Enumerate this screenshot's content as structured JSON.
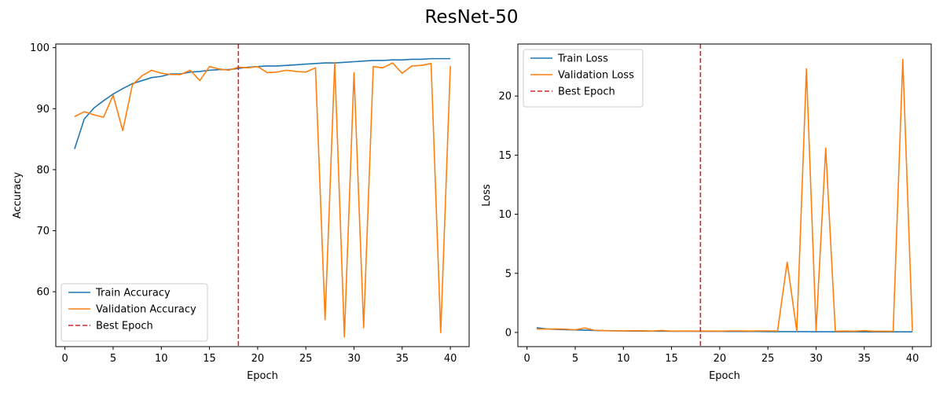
{
  "suptitle": "ResNet-50",
  "chart_data": [
    {
      "type": "line",
      "xlabel": "Epoch",
      "ylabel": "Accuracy",
      "xlim": [
        -0.95,
        41.95
      ],
      "ylim": [
        51.0,
        100.6
      ],
      "xticks": [
        0,
        5,
        10,
        15,
        20,
        25,
        30,
        35,
        40
      ],
      "yticks": [
        60,
        70,
        80,
        90,
        100
      ],
      "legend_position": "lower-left",
      "grid": false,
      "x": [
        1,
        2,
        3,
        4,
        5,
        6,
        7,
        8,
        9,
        10,
        11,
        12,
        13,
        14,
        15,
        16,
        17,
        18,
        19,
        20,
        21,
        22,
        23,
        24,
        25,
        26,
        27,
        28,
        29,
        30,
        31,
        32,
        33,
        34,
        35,
        36,
        37,
        38,
        39,
        40
      ],
      "series": [
        {
          "name": "Train Accuracy",
          "color": "#1f77b4",
          "style": "solid",
          "values": [
            83.4,
            88.3,
            90.1,
            91.3,
            92.4,
            93.3,
            94.1,
            94.6,
            95.1,
            95.3,
            95.7,
            95.7,
            96.0,
            96.1,
            96.3,
            96.4,
            96.4,
            96.6,
            96.8,
            96.9,
            97.0,
            97.0,
            97.1,
            97.2,
            97.3,
            97.4,
            97.5,
            97.5,
            97.6,
            97.7,
            97.8,
            97.9,
            97.9,
            98.0,
            98.0,
            98.1,
            98.1,
            98.2,
            98.2,
            98.2
          ]
        },
        {
          "name": "Validation Accuracy",
          "color": "#ff7f0e",
          "style": "solid",
          "values": [
            88.7,
            89.5,
            89.0,
            88.6,
            92.2,
            86.4,
            93.9,
            95.4,
            96.3,
            95.8,
            95.6,
            95.6,
            96.3,
            94.6,
            96.9,
            96.5,
            96.3,
            96.8,
            96.7,
            96.9,
            95.9,
            96.0,
            96.3,
            96.1,
            96.0,
            96.7,
            55.4,
            97.6,
            52.6,
            95.9,
            54.1,
            96.9,
            96.7,
            97.5,
            95.8,
            97.0,
            97.1,
            97.4,
            53.3,
            97.0
          ]
        }
      ],
      "vlines": [
        {
          "name": "Best Epoch",
          "x": 18,
          "color": "#d62728",
          "style": "dashed"
        }
      ]
    },
    {
      "type": "line",
      "xlabel": "Epoch",
      "ylabel": "Loss",
      "xlim": [
        -0.95,
        41.95
      ],
      "ylim": [
        -1.2,
        24.4
      ],
      "xticks": [
        0,
        5,
        10,
        15,
        20,
        25,
        30,
        35,
        40
      ],
      "yticks": [
        0,
        5,
        10,
        15,
        20
      ],
      "legend_position": "upper-left",
      "grid": false,
      "x": [
        1,
        2,
        3,
        4,
        5,
        6,
        7,
        8,
        9,
        10,
        11,
        12,
        13,
        14,
        15,
        16,
        17,
        18,
        19,
        20,
        21,
        22,
        23,
        24,
        25,
        26,
        27,
        28,
        29,
        30,
        31,
        32,
        33,
        34,
        35,
        36,
        37,
        38,
        39,
        40
      ],
      "series": [
        {
          "name": "Train Loss",
          "color": "#1f77b4",
          "style": "solid",
          "values": [
            0.4,
            0.3,
            0.26,
            0.23,
            0.21,
            0.19,
            0.17,
            0.15,
            0.14,
            0.13,
            0.12,
            0.12,
            0.11,
            0.11,
            0.1,
            0.1,
            0.1,
            0.09,
            0.09,
            0.09,
            0.08,
            0.08,
            0.08,
            0.08,
            0.07,
            0.07,
            0.07,
            0.07,
            0.07,
            0.06,
            0.06,
            0.06,
            0.06,
            0.06,
            0.05,
            0.05,
            0.05,
            0.05,
            0.05,
            0.05
          ]
        },
        {
          "name": "Validation Loss",
          "color": "#ff7f0e",
          "style": "solid",
          "values": [
            0.3,
            0.28,
            0.3,
            0.28,
            0.22,
            0.38,
            0.18,
            0.15,
            0.13,
            0.14,
            0.14,
            0.14,
            0.12,
            0.17,
            0.11,
            0.12,
            0.12,
            0.11,
            0.12,
            0.11,
            0.13,
            0.13,
            0.12,
            0.13,
            0.13,
            0.12,
            5.95,
            0.1,
            22.3,
            0.13,
            15.6,
            0.11,
            0.12,
            0.1,
            0.15,
            0.1,
            0.1,
            0.09,
            23.1,
            0.11
          ]
        }
      ],
      "vlines": [
        {
          "name": "Best Epoch",
          "x": 18,
          "color": "#d62728",
          "style": "dashed"
        }
      ]
    }
  ]
}
